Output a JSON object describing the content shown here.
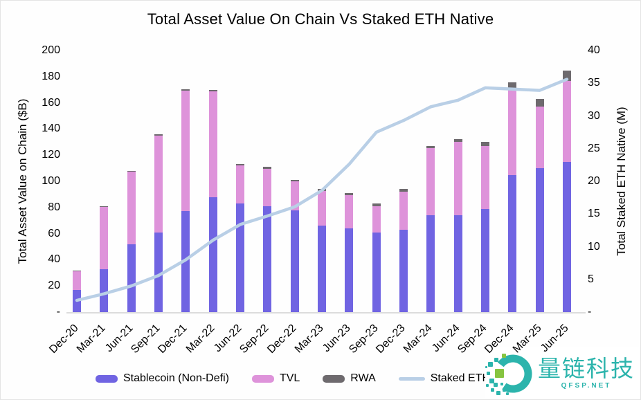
{
  "title": "Total Asset Value On Chain Vs Staked ETH Native",
  "chart_data": {
    "type": "bar+line",
    "title": "Total Asset Value On Chain Vs Staked ETH Native",
    "categories": [
      "Dec-20",
      "Mar-21",
      "Jun-21",
      "Sep-21",
      "Dec-21",
      "Mar-22",
      "Jun-22",
      "Sep-22",
      "Dec-22",
      "Mar-23",
      "Jun-23",
      "Sep-23",
      "Dec-23",
      "Mar-24",
      "Jun-24",
      "Sep-24",
      "Dec-24",
      "Mar-25",
      "Jun-25"
    ],
    "bar_series": [
      {
        "name": "Stablecoin (Non-Defi)",
        "color": "#7064e2",
        "stack": "total",
        "values": [
          17,
          33,
          52,
          61,
          77,
          88,
          83,
          81,
          78,
          66,
          64,
          61,
          63,
          74,
          74,
          79,
          105,
          110,
          115
        ]
      },
      {
        "name": "TVL",
        "color": "#de93da",
        "stack": "total",
        "values": [
          14.5,
          47.5,
          55.5,
          74,
          92,
          81,
          29,
          28.5,
          22,
          26.5,
          25.5,
          20,
          29,
          51.5,
          56,
          48,
          65,
          47,
          62
        ]
      },
      {
        "name": "RWA",
        "color": "#6e6a6e",
        "stack": "total",
        "values": [
          0.5,
          0.5,
          0.5,
          1,
          1,
          1,
          1,
          1.5,
          1,
          1.5,
          1.5,
          2,
          2,
          1.5,
          2,
          3,
          6,
          6,
          8
        ]
      }
    ],
    "line_series": {
      "name": "Staked ETH Native",
      "color": "#b9cfe6",
      "axis": "right",
      "values": [
        1.8,
        2.8,
        4,
        5.6,
        8,
        11,
        13.4,
        14.7,
        16.1,
        18.6,
        22.6,
        27.5,
        29.3,
        31.4,
        32.4,
        34.3,
        34.1,
        33.9,
        35.6
      ]
    },
    "left_axis": {
      "label": "Total Asset Value on Chain ($B)",
      "min": 0,
      "max": 200,
      "tick_step": 20,
      "ticks": [
        "200",
        "180",
        "160",
        "140",
        "120",
        "100",
        "80",
        "60",
        "40",
        "20",
        "-"
      ]
    },
    "right_axis": {
      "label": "Total Staked ETH Native (M)",
      "min": 0,
      "max": 40,
      "tick_step": 5,
      "ticks": [
        "40",
        "35",
        "30",
        "25",
        "20",
        "15",
        "10",
        "5",
        "-"
      ]
    },
    "grid": false,
    "legend_position": "bottom"
  },
  "legend": {
    "items": [
      {
        "label": "Stablecoin (Non-Defi)",
        "swatch": "bar",
        "color": "#7064e2"
      },
      {
        "label": "TVL",
        "swatch": "bar",
        "color": "#de93da"
      },
      {
        "label": "RWA",
        "swatch": "bar",
        "color": "#6e6a6e"
      },
      {
        "label": "Staked ETH Native",
        "swatch": "line",
        "color": "#b9cfe6"
      }
    ]
  },
  "watermark": {
    "brand_name": "量链科技",
    "site": "QFSP.NET",
    "teal": "#2cb4ac",
    "green": "#86c440"
  }
}
